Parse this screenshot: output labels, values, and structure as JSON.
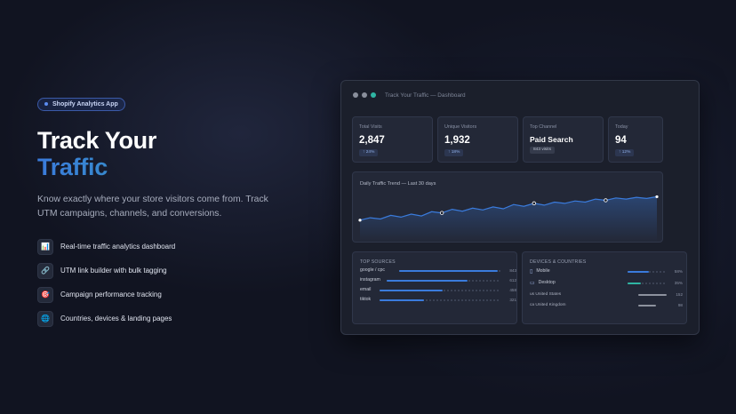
{
  "hero": {
    "badge": "Shopify Analytics App",
    "title_line1": "Track Your",
    "title_line2": "Traffic",
    "subtitle": "Know exactly where your store visitors come from. Track UTM campaigns, channels, and conversions.",
    "features": [
      {
        "icon": "bar-chart-icon",
        "glyph": "📊",
        "label": "Real-time traffic analytics dashboard"
      },
      {
        "icon": "link-icon",
        "glyph": "🔗",
        "label": "UTM link builder with bulk tagging"
      },
      {
        "icon": "target-icon",
        "glyph": "🎯",
        "label": "Campaign performance tracking"
      },
      {
        "icon": "globe-icon",
        "glyph": "🌐",
        "label": "Countries, devices & landing pages"
      }
    ]
  },
  "dashboard": {
    "window_title": "Track Your Traffic — Dashboard",
    "window_dots": [
      "#8a8f9c",
      "#8a8f9c",
      "#2fb5a3"
    ],
    "stats": [
      {
        "label": "Total Visits",
        "value": "2,847",
        "chip": "↑ 24%"
      },
      {
        "label": "Unique Visitors",
        "value": "1,932",
        "chip": "↑ 18%"
      },
      {
        "label": "Top Channel",
        "value": "Paid Search",
        "chip": "843 visits"
      },
      {
        "label": "Today",
        "value": "94",
        "chip": "↑ 12%"
      }
    ],
    "trend": {
      "title": "Daily Traffic Trend — Last 30 days"
    },
    "top_sources": {
      "title": "TOP SOURCES",
      "rows": [
        {
          "label": "google / cpc",
          "value": "843",
          "fraction": 1.0
        },
        {
          "label": "instagram",
          "value": "612",
          "fraction": 0.73
        },
        {
          "label": "email",
          "value": "458",
          "fraction": 0.54
        },
        {
          "label": "tiktok",
          "value": "321",
          "fraction": 0.38
        }
      ]
    },
    "devices": {
      "title": "DEVICES & COUNTRIES",
      "device_rows": [
        {
          "icon": "mobile-icon",
          "glyph": "▯",
          "label": "Mobile",
          "value": "58%",
          "fraction": 0.58
        },
        {
          "icon": "desktop-icon",
          "glyph": "▭",
          "label": "Desktop",
          "value": "35%",
          "fraction": 0.35
        }
      ],
      "country_rows": [
        {
          "label": "us United States",
          "value": "152",
          "fraction": 1.0
        },
        {
          "label": "ca United Kingdom",
          "value": "98",
          "fraction": 0.64
        }
      ]
    },
    "colors": {
      "accent_blue": "#3a7bdc",
      "accent_teal": "#2fb5a3",
      "bar_gray": "#8d929e"
    }
  },
  "chart_data": {
    "type": "line",
    "title": "Daily Traffic Trend — Last 30 days",
    "x": [
      1,
      2,
      3,
      4,
      5,
      6,
      7,
      8,
      9,
      10,
      11,
      12,
      13,
      14,
      15,
      16,
      17,
      18,
      19,
      20,
      21,
      22,
      23,
      24,
      25,
      26,
      27,
      28,
      29,
      30
    ],
    "series": [
      {
        "values": [
          58,
          62,
          60,
          66,
          63,
          68,
          65,
          72,
          70,
          76,
          73,
          78,
          75,
          80,
          77,
          84,
          81,
          86,
          83,
          88,
          86,
          90,
          88,
          93,
          91,
          95,
          93,
          96,
          94,
          97
        ]
      }
    ],
    "highlighted_points": [
      8,
      17,
      24
    ],
    "ylim": [
      40,
      105
    ],
    "grid": false
  }
}
